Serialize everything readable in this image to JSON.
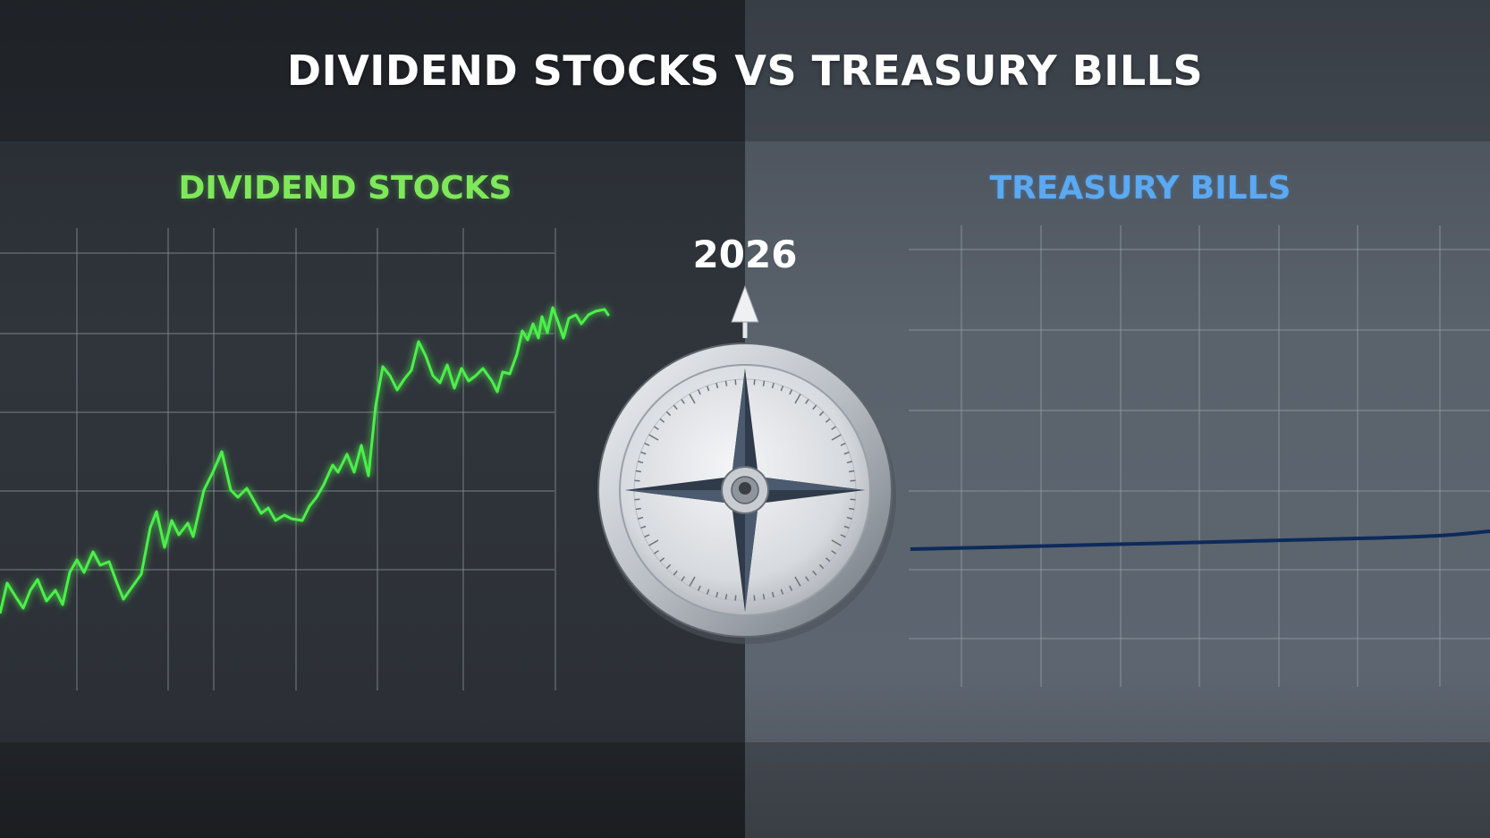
{
  "title": "DIVIDEND STOCKS VS TREASURY BILLS",
  "year": "2026",
  "panels": {
    "left": {
      "title": "DIVIDEND STOCKS",
      "line_color": "#4cf04a"
    },
    "right": {
      "title": "TREASURY BILLS",
      "line_color": "#0d2a5c"
    }
  },
  "icons": {
    "center": "compass-icon",
    "pointer": "arrow-up-icon"
  },
  "colors": {
    "left_background": "#2d3238",
    "right_background": "#59616b",
    "title_text": "#ffffff",
    "left_title": "#7fe85a",
    "right_title": "#5aa9f2"
  }
}
